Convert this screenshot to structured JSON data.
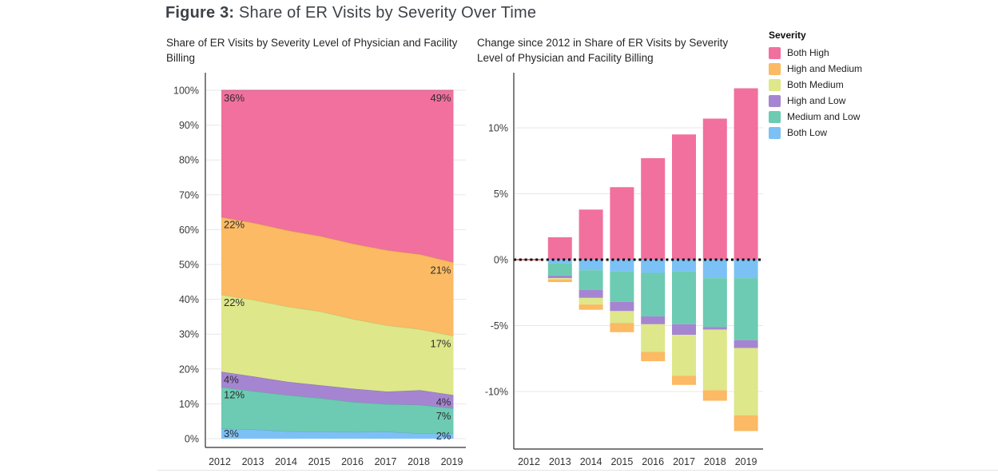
{
  "page": {
    "title_prefix": "Figure 3:",
    "title_rest": " Share of ER Visits by Severity Over Time"
  },
  "legend": {
    "title": "Severity",
    "items": [
      {
        "label": "Both High",
        "color": "#F1709D"
      },
      {
        "label": "High and Medium",
        "color": "#FBBA63"
      },
      {
        "label": "Both Medium",
        "color": "#DEE78A"
      },
      {
        "label": "High and Low",
        "color": "#A585D1"
      },
      {
        "label": "Medium and Low",
        "color": "#6CCBB2"
      },
      {
        "label": "Both Low",
        "color": "#7CC1F5"
      }
    ]
  },
  "chart_data": [
    {
      "type": "area",
      "title": "Share of ER Visits by Severity Level of Physician and Facility Billing",
      "x": [
        2012,
        2013,
        2014,
        2015,
        2016,
        2017,
        2018,
        2019
      ],
      "x_tick_labels": [
        "2012",
        "2013",
        "2014",
        "2015",
        "2016",
        "2017",
        "2018",
        "2019"
      ],
      "y_tick_values": [
        0,
        10,
        20,
        30,
        40,
        50,
        60,
        70,
        80,
        90,
        100
      ],
      "y_tick_labels": [
        "0%",
        "10%",
        "20%",
        "30%",
        "40%",
        "50%",
        "60%",
        "70%",
        "80%",
        "90%",
        "100%"
      ],
      "ylim": [
        0,
        100
      ],
      "grid": true,
      "stack_order": "bottom-to-top",
      "series": [
        {
          "name": "Both Low",
          "color": "#7CC1F5",
          "values": [
            2.9,
            2.6,
            2.1,
            2.0,
            1.9,
            2.0,
            1.5,
            1.5
          ],
          "label_2012": "3%",
          "label_2019": "2%"
        },
        {
          "name": "Medium and Low",
          "color": "#6CCBB2",
          "values": [
            11.9,
            11.0,
            10.4,
            9.6,
            8.6,
            7.9,
            8.2,
            7.2
          ],
          "label_2012": "12%",
          "label_2019": "7%"
        },
        {
          "name": "High and Low",
          "color": "#A585D1",
          "values": [
            4.4,
            4.2,
            3.8,
            3.7,
            3.8,
            3.6,
            4.2,
            3.8
          ],
          "label_2012": "4%",
          "label_2019": "4%"
        },
        {
          "name": "Both Medium",
          "color": "#DEE78A",
          "values": [
            22.1,
            22.0,
            21.6,
            21.2,
            20.0,
            19.0,
            17.5,
            17.0
          ],
          "label_2012": "22%",
          "label_2019": "17%"
        },
        {
          "name": "High and Medium",
          "color": "#FBBA63",
          "values": [
            22.3,
            22.1,
            21.9,
            21.6,
            21.6,
            21.6,
            21.5,
            21.1
          ],
          "label_2012": "22%",
          "label_2019": "21%"
        },
        {
          "name": "Both High",
          "color": "#F1709D",
          "values": [
            36.4,
            38.1,
            40.2,
            41.9,
            44.1,
            45.9,
            47.1,
            49.4
          ],
          "label_2012": "36%",
          "label_2019": "49%"
        }
      ]
    },
    {
      "type": "bar",
      "title": "Change since 2012 in Share of ER Visits by Severity Level of Physician and Facility Billing",
      "x": [
        2012,
        2013,
        2014,
        2015,
        2016,
        2017,
        2018,
        2019
      ],
      "x_tick_labels": [
        "2012",
        "2013",
        "2014",
        "2015",
        "2016",
        "2017",
        "2018",
        "2019"
      ],
      "y_tick_values": [
        -10,
        -5,
        0,
        5,
        10
      ],
      "y_tick_labels": [
        "-10%",
        "-5%",
        "0%",
        "5%",
        "10%"
      ],
      "ylim": [
        -14,
        14
      ],
      "grid": true,
      "zero_line_style": "dotted-black",
      "baseline_2012_color": "#E8433D",
      "series": [
        {
          "name": "Both High",
          "color": "#F1709D",
          "values": [
            0,
            1.7,
            3.8,
            5.5,
            7.7,
            9.5,
            10.7,
            13.0
          ]
        },
        {
          "name": "Both Low",
          "color": "#7CC1F5",
          "values": [
            0,
            -0.3,
            -0.8,
            -0.9,
            -1.0,
            -0.9,
            -1.4,
            -1.4
          ]
        },
        {
          "name": "Medium and Low",
          "color": "#6CCBB2",
          "values": [
            0,
            -0.9,
            -1.5,
            -2.3,
            -3.3,
            -4.0,
            -3.7,
            -4.7
          ]
        },
        {
          "name": "High and Low",
          "color": "#A585D1",
          "values": [
            0,
            -0.2,
            -0.6,
            -0.7,
            -0.6,
            -0.8,
            -0.2,
            -0.6
          ]
        },
        {
          "name": "Both Medium",
          "color": "#DEE78A",
          "values": [
            0,
            -0.1,
            -0.5,
            -0.9,
            -2.1,
            -3.1,
            -4.6,
            -5.1
          ]
        },
        {
          "name": "High and Medium",
          "color": "#FBBA63",
          "values": [
            0,
            -0.2,
            -0.4,
            -0.7,
            -0.7,
            -0.7,
            -0.8,
            -1.2
          ]
        }
      ]
    }
  ]
}
